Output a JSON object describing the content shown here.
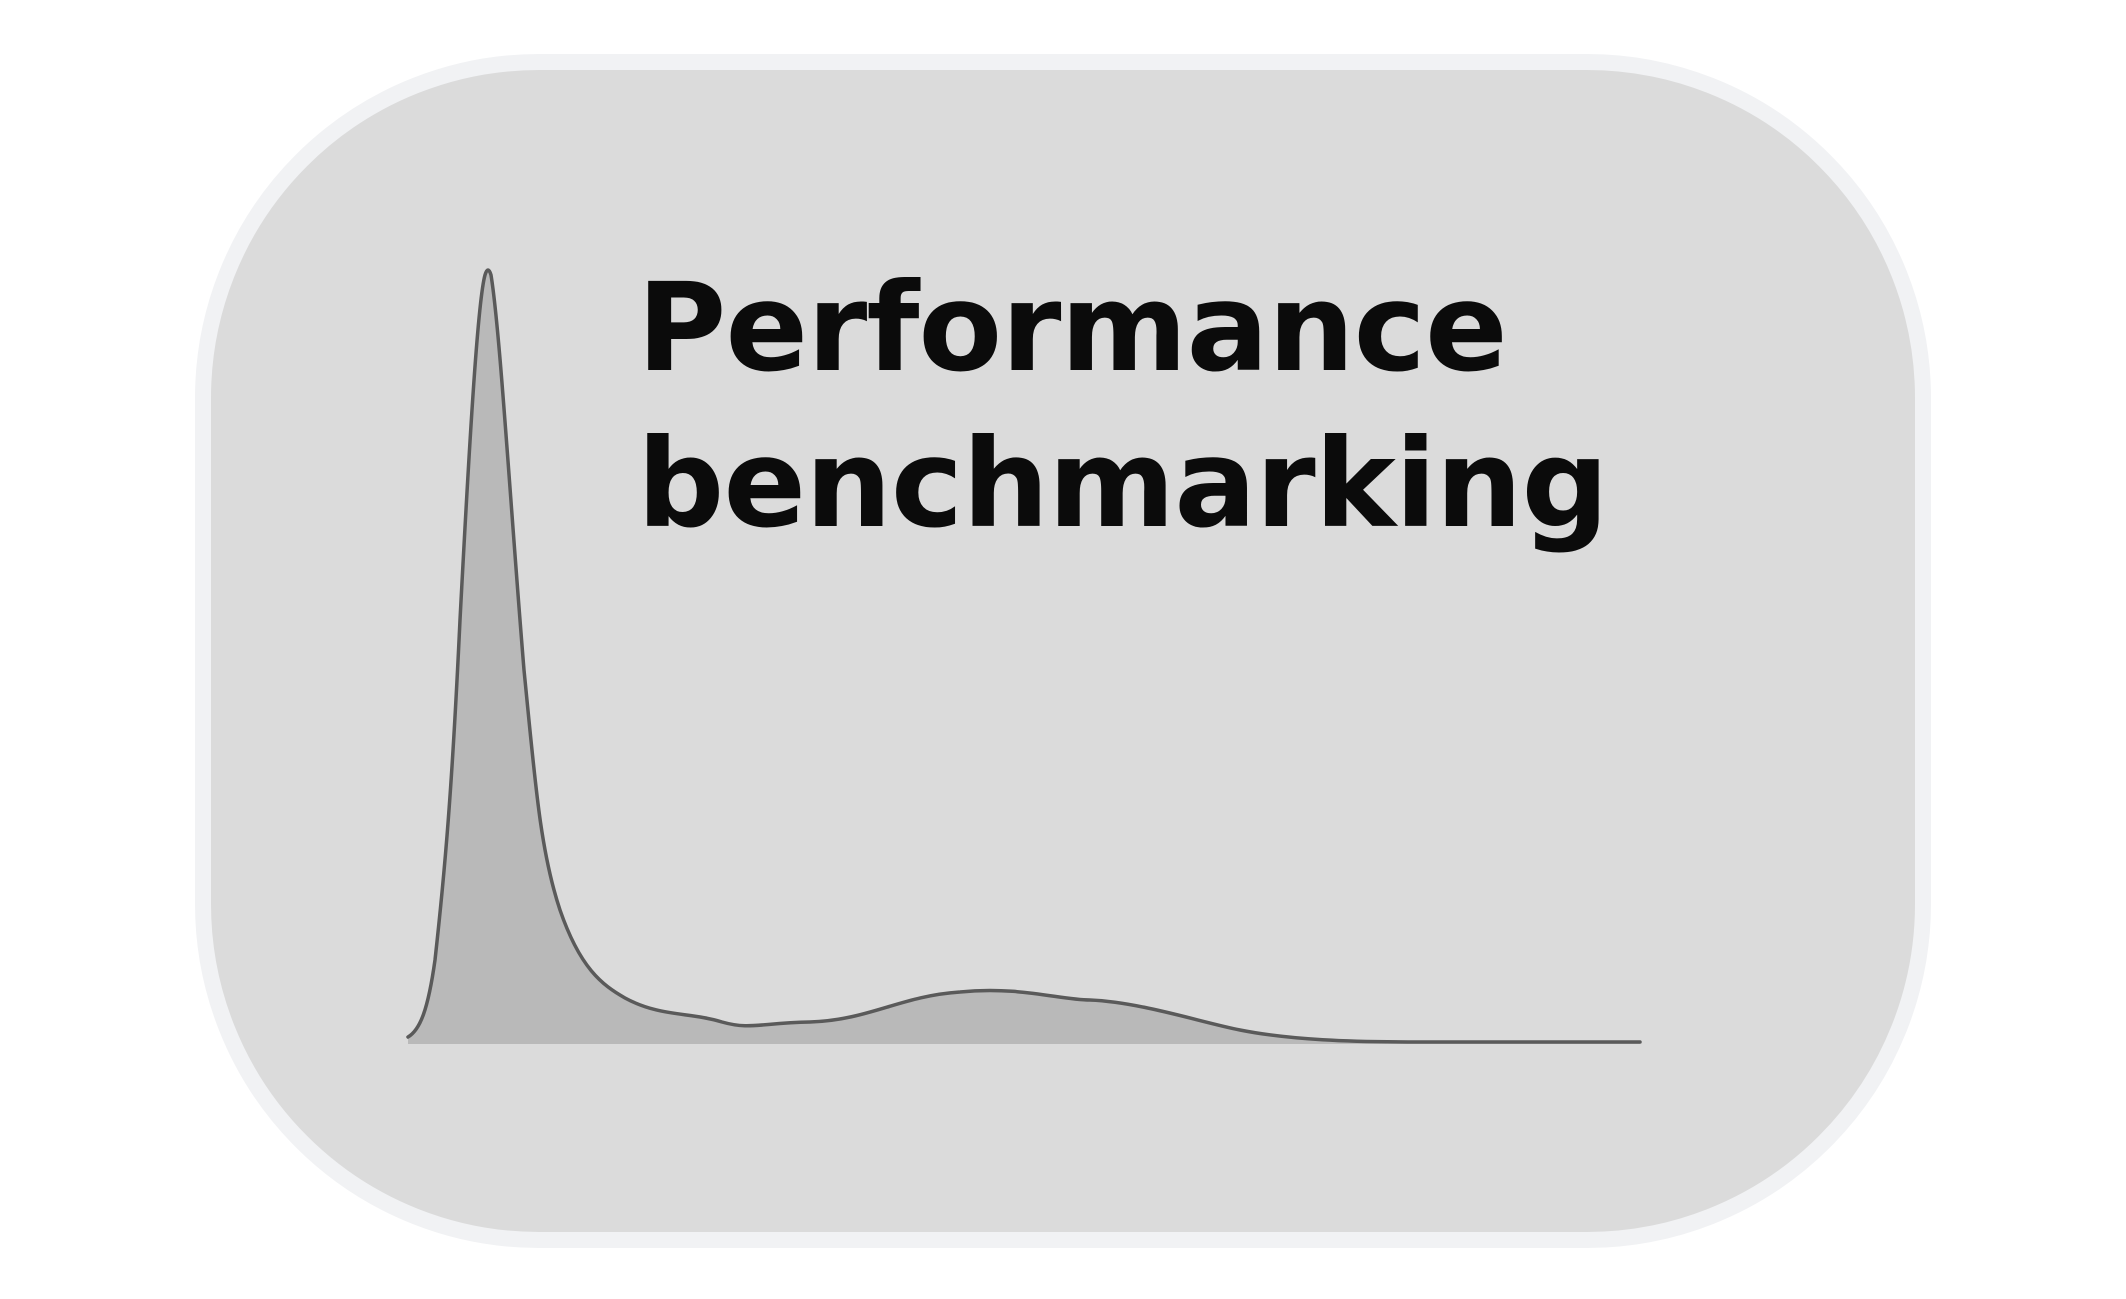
{
  "logo": {
    "title_line_1": "Performance",
    "title_line_2": "benchmarking",
    "colors": {
      "card_fill": "#dbdbdb",
      "card_border": "#f1f2f4",
      "curve_fill": "#b9b9b9",
      "curve_stroke": "#5a5a5a",
      "text": "#0b0b0b"
    }
  }
}
